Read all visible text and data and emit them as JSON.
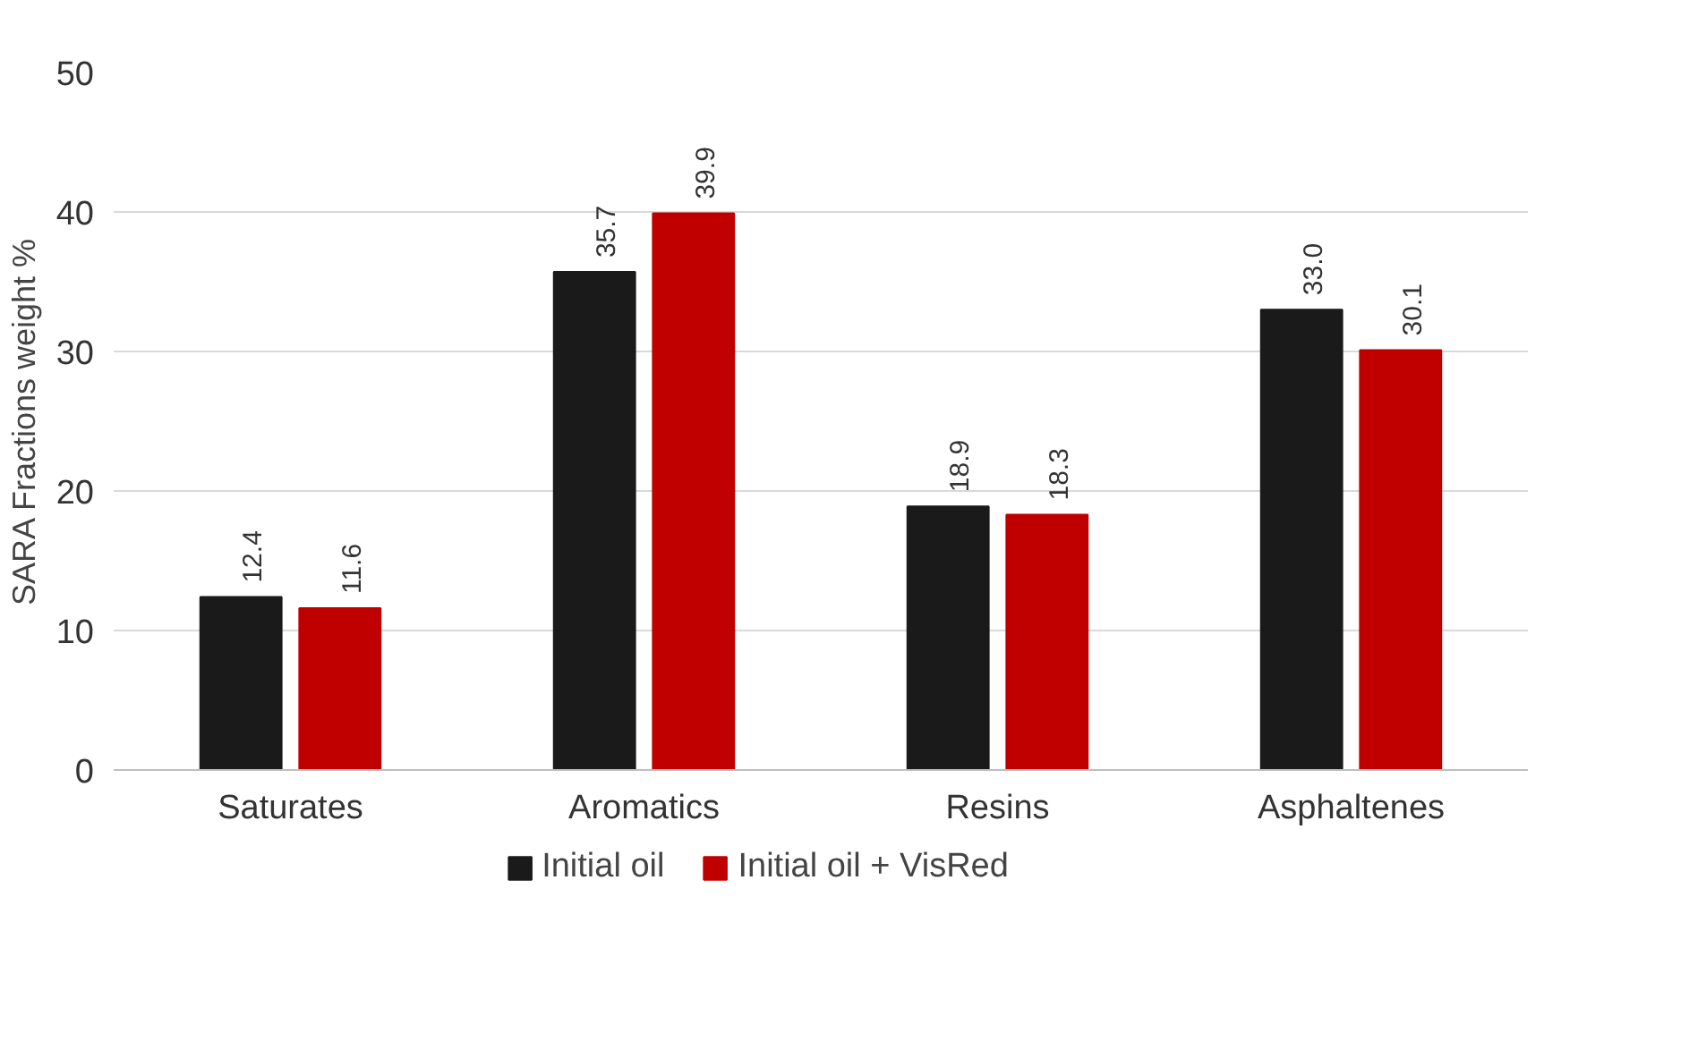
{
  "chart_data": {
    "type": "bar",
    "ylabel": "SARA Fractions weight %",
    "categories": [
      "Saturates",
      "Aromatics",
      "Resins",
      "Asphaltenes"
    ],
    "series": [
      {
        "name": "Initial oil",
        "color": "#1a1a1a",
        "values": [
          12.4,
          35.7,
          18.9,
          33.0
        ],
        "value_labels": [
          "12.4",
          "35.7",
          "18.9",
          "33.0"
        ]
      },
      {
        "name": "Initial oil + VisRed",
        "color": "#c00000",
        "values": [
          11.6,
          39.9,
          18.3,
          30.1
        ],
        "value_labels": [
          "11.6",
          "39.9",
          "18.3",
          "30.1"
        ]
      }
    ],
    "ylim": [
      0,
      50
    ],
    "yticks": [
      0,
      10,
      20,
      30,
      40,
      50
    ],
    "grid": "y",
    "legend": "bottom",
    "data_labels": true
  }
}
